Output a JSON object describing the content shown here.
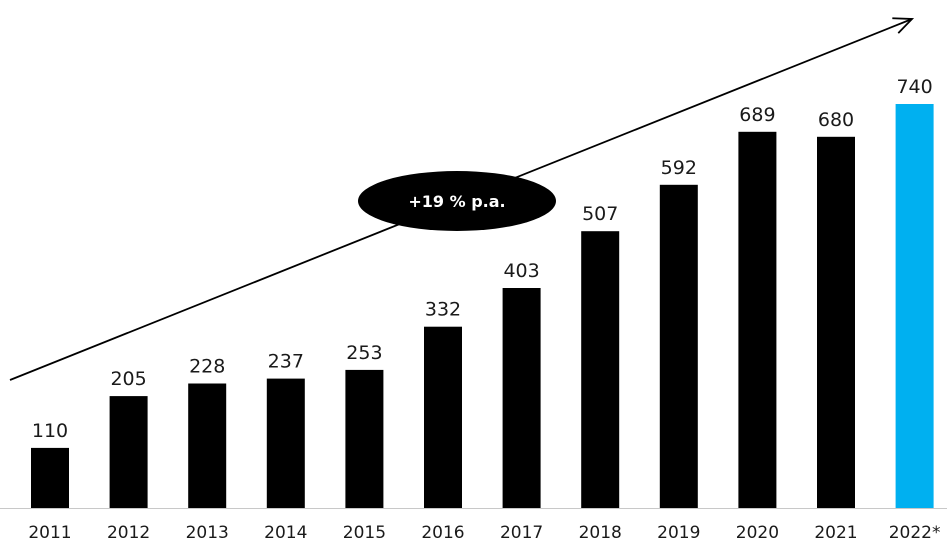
{
  "chart_data": {
    "type": "bar",
    "categories": [
      "2011",
      "2012",
      "2013",
      "2014",
      "2015",
      "2016",
      "2017",
      "2018",
      "2019",
      "2020",
      "2021",
      "2022*"
    ],
    "values": [
      110,
      205,
      228,
      237,
      253,
      332,
      403,
      507,
      592,
      689,
      680,
      740
    ],
    "data_labels": [
      "110",
      "205",
      "228",
      "237",
      "253",
      "332",
      "403",
      "507",
      "592",
      "689",
      "680",
      "740"
    ],
    "title": "",
    "xlabel": "",
    "ylabel": "",
    "ylim": [
      0,
      740
    ],
    "grid": false,
    "legend": "none",
    "colors": {
      "bar": "#000000",
      "highlight_bar": "#00b0f0",
      "axis": "#c8c8c8",
      "trend": "#000000"
    },
    "highlight_index": 11,
    "annotation": {
      "text": "+19 % p.a.",
      "shape": "black-ellipse-on-trend-arrow"
    }
  }
}
